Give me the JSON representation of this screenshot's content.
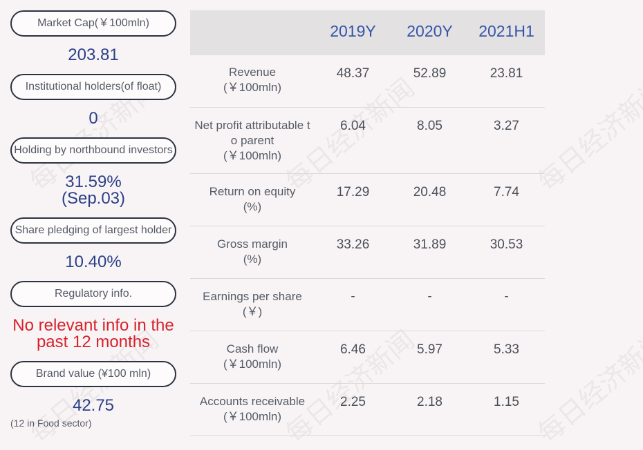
{
  "left_panel": {
    "market_cap": {
      "label": "Market Cap(￥100mln)",
      "value": "203.81"
    },
    "institutional": {
      "label": "Institutional holders(of float)",
      "value": "0"
    },
    "northbound": {
      "label": "Holding by northbound investors",
      "value": "31.59%",
      "sub": "(Sep.03)"
    },
    "pledging": {
      "label": "Share pledging of largest holder",
      "value": "10.40%"
    },
    "regulatory": {
      "label": "Regulatory info.",
      "line1": "No relevant info in the",
      "line2": "past 12 months"
    },
    "brand": {
      "label": "Brand value (¥100 mln)",
      "value": "42.75",
      "note": "(12 in Food sector)"
    }
  },
  "table": {
    "years": [
      "2019Y",
      "2020Y",
      "2021H1"
    ],
    "rows": [
      {
        "metric": "Revenue",
        "unit": "(￥100mln)",
        "values": [
          "48.37",
          "52.89",
          "23.81"
        ]
      },
      {
        "metric_line1": "Net profit attributable t",
        "metric_line2": "o parent",
        "unit": "(￥100mln)",
        "values": [
          "6.04",
          "8.05",
          "3.27"
        ]
      },
      {
        "metric": "Return on equity",
        "unit": "(%)",
        "values": [
          "17.29",
          "20.48",
          "7.74"
        ]
      },
      {
        "metric": "Gross margin",
        "unit": "(%)",
        "values": [
          "33.26",
          "31.89",
          "30.53"
        ]
      },
      {
        "metric": "Earnings per share",
        "unit": "(￥)",
        "values": [
          "-",
          "-",
          "-"
        ]
      },
      {
        "metric": "Cash flow",
        "unit": "(￥100mln)",
        "values": [
          "6.46",
          "5.97",
          "5.33"
        ]
      },
      {
        "metric": "Accounts receivable",
        "unit": "(￥100mln)",
        "values": [
          "2.25",
          "2.18",
          "1.15"
        ]
      }
    ]
  },
  "watermark": "每日经济新闻"
}
